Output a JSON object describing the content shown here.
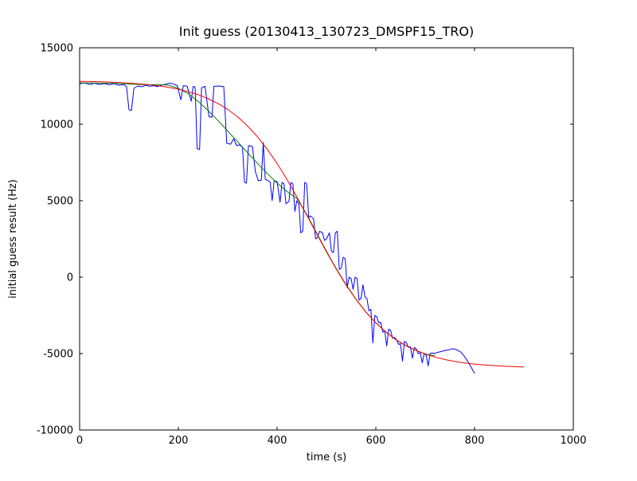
{
  "figure": {
    "background": "#ffffff",
    "frame_color": "#000000"
  },
  "chart_data": {
    "type": "line",
    "title": "Init guess (20130413_130723_DMSPF15_TRO)",
    "xlabel": "time (s)",
    "ylabel": "initial guess result (Hz)",
    "xlim": [
      0,
      1000
    ],
    "ylim": [
      -10000,
      15000
    ],
    "xticks": [
      0,
      200,
      400,
      600,
      800,
      1000
    ],
    "yticks": [
      -10000,
      -5000,
      0,
      5000,
      10000,
      15000
    ],
    "grid": false,
    "legend": "none",
    "series": [
      {
        "name": "blue-line",
        "color": "#0000ff",
        "points": [
          [
            0,
            12650
          ],
          [
            10,
            12700
          ],
          [
            20,
            12600
          ],
          [
            30,
            12680
          ],
          [
            40,
            12600
          ],
          [
            50,
            12660
          ],
          [
            60,
            12580
          ],
          [
            70,
            12650
          ],
          [
            80,
            12550
          ],
          [
            90,
            12600
          ],
          [
            95,
            12450
          ],
          [
            100,
            10950
          ],
          [
            105,
            10900
          ],
          [
            110,
            12350
          ],
          [
            118,
            12500
          ],
          [
            126,
            12450
          ],
          [
            134,
            12550
          ],
          [
            142,
            12480
          ],
          [
            150,
            12520
          ],
          [
            158,
            12460
          ],
          [
            166,
            12560
          ],
          [
            174,
            12620
          ],
          [
            182,
            12680
          ],
          [
            190,
            12640
          ],
          [
            198,
            12520
          ],
          [
            205,
            11600
          ],
          [
            210,
            12520
          ],
          [
            218,
            12480
          ],
          [
            226,
            11500
          ],
          [
            230,
            12480
          ],
          [
            234,
            12420
          ],
          [
            238,
            8400
          ],
          [
            243,
            8350
          ],
          [
            247,
            12380
          ],
          [
            254,
            12480
          ],
          [
            262,
            10500
          ],
          [
            268,
            10450
          ],
          [
            272,
            12480
          ],
          [
            282,
            12500
          ],
          [
            292,
            12460
          ],
          [
            298,
            8750
          ],
          [
            306,
            8700
          ],
          [
            312,
            9050
          ],
          [
            318,
            8600
          ],
          [
            324,
            8650
          ],
          [
            330,
            8500
          ],
          [
            334,
            6200
          ],
          [
            338,
            6150
          ],
          [
            342,
            8600
          ],
          [
            350,
            8550
          ],
          [
            356,
            6900
          ],
          [
            362,
            6300
          ],
          [
            368,
            6350
          ],
          [
            372,
            8800
          ],
          [
            376,
            6400
          ],
          [
            382,
            6300
          ],
          [
            386,
            6200
          ],
          [
            390,
            5000
          ],
          [
            394,
            6300
          ],
          [
            400,
            6250
          ],
          [
            406,
            4900
          ],
          [
            410,
            6200
          ],
          [
            414,
            6100
          ],
          [
            418,
            4800
          ],
          [
            424,
            4950
          ],
          [
            428,
            6200
          ],
          [
            432,
            6100
          ],
          [
            436,
            4300
          ],
          [
            440,
            5000
          ],
          [
            444,
            4800
          ],
          [
            448,
            2900
          ],
          [
            452,
            3000
          ],
          [
            456,
            6200
          ],
          [
            460,
            6100
          ],
          [
            464,
            3900
          ],
          [
            468,
            4000
          ],
          [
            474,
            3800
          ],
          [
            478,
            2500
          ],
          [
            482,
            2600
          ],
          [
            486,
            3000
          ],
          [
            492,
            2900
          ],
          [
            496,
            2400
          ],
          [
            500,
            2500
          ],
          [
            506,
            2900
          ],
          [
            510,
            1700
          ],
          [
            514,
            1600
          ],
          [
            518,
            2900
          ],
          [
            522,
            3000
          ],
          [
            526,
            500
          ],
          [
            530,
            600
          ],
          [
            534,
            1300
          ],
          [
            538,
            1200
          ],
          [
            542,
            -700
          ],
          [
            546,
            0
          ],
          [
            550,
            -100
          ],
          [
            554,
            -800
          ],
          [
            558,
            0
          ],
          [
            562,
            -100
          ],
          [
            566,
            -1500
          ],
          [
            570,
            -1400
          ],
          [
            574,
            -500
          ],
          [
            578,
            -1300
          ],
          [
            582,
            -1400
          ],
          [
            586,
            -2200
          ],
          [
            590,
            -2100
          ],
          [
            594,
            -4300
          ],
          [
            598,
            -2500
          ],
          [
            602,
            -2600
          ],
          [
            606,
            -3000
          ],
          [
            610,
            -2950
          ],
          [
            614,
            -3600
          ],
          [
            618,
            -3500
          ],
          [
            622,
            -4500
          ],
          [
            626,
            -3400
          ],
          [
            630,
            -3500
          ],
          [
            634,
            -4000
          ],
          [
            638,
            -3950
          ],
          [
            642,
            -4100
          ],
          [
            646,
            -4400
          ],
          [
            650,
            -4350
          ],
          [
            654,
            -5500
          ],
          [
            658,
            -4200
          ],
          [
            662,
            -4300
          ],
          [
            666,
            -4600
          ],
          [
            670,
            -4550
          ],
          [
            674,
            -5300
          ],
          [
            678,
            -4600
          ],
          [
            682,
            -4700
          ],
          [
            686,
            -5000
          ],
          [
            690,
            -4950
          ],
          [
            694,
            -5600
          ],
          [
            698,
            -5000
          ],
          [
            702,
            -5100
          ],
          [
            706,
            -5800
          ],
          [
            710,
            -5000
          ],
          [
            714,
            -4950
          ],
          [
            718,
            -5000
          ],
          [
            724,
            -4930
          ],
          [
            732,
            -4870
          ],
          [
            740,
            -4800
          ],
          [
            748,
            -4750
          ],
          [
            756,
            -4680
          ],
          [
            764,
            -4750
          ],
          [
            772,
            -4900
          ],
          [
            780,
            -5200
          ],
          [
            788,
            -5600
          ],
          [
            795,
            -6000
          ],
          [
            800,
            -6300
          ]
        ]
      },
      {
        "name": "green-line",
        "color": "#008000",
        "points": [
          [
            0,
            12700
          ],
          [
            20,
            12700
          ],
          [
            40,
            12690
          ],
          [
            60,
            12680
          ],
          [
            80,
            12660
          ],
          [
            100,
            12630
          ],
          [
            120,
            12600
          ],
          [
            140,
            12580
          ],
          [
            160,
            12600
          ],
          [
            180,
            12550
          ],
          [
            200,
            12350
          ],
          [
            220,
            12000
          ],
          [
            240,
            11500
          ],
          [
            260,
            10900
          ],
          [
            280,
            10250
          ],
          [
            300,
            9550
          ],
          [
            320,
            8850
          ],
          [
            340,
            8150
          ],
          [
            360,
            7450
          ],
          [
            380,
            6780
          ],
          [
            400,
            6150
          ],
          [
            420,
            5600
          ],
          [
            440,
            5150
          ],
          [
            460,
            4100
          ],
          [
            480,
            2900
          ],
          [
            500,
            1700
          ],
          [
            520,
            550
          ],
          [
            540,
            -500
          ],
          [
            560,
            -1450
          ],
          [
            580,
            -2280
          ],
          [
            600,
            -2990
          ],
          [
            620,
            -3580
          ],
          [
            640,
            -4080
          ],
          [
            660,
            -4470
          ],
          [
            680,
            -4780
          ],
          [
            700,
            -5020
          ],
          [
            720,
            -5150
          ]
        ]
      },
      {
        "name": "red-line",
        "color": "#ff0000",
        "points": [
          [
            0,
            12806
          ],
          [
            20,
            12794
          ],
          [
            40,
            12777
          ],
          [
            60,
            12755
          ],
          [
            80,
            12727
          ],
          [
            100,
            12691
          ],
          [
            120,
            12645
          ],
          [
            140,
            12588
          ],
          [
            160,
            12512
          ],
          [
            180,
            12414
          ],
          [
            200,
            12290
          ],
          [
            220,
            12133
          ],
          [
            240,
            11933
          ],
          [
            260,
            11673
          ],
          [
            280,
            11358
          ],
          [
            300,
            10972
          ],
          [
            320,
            10480
          ],
          [
            340,
            9893
          ],
          [
            360,
            9192
          ],
          [
            380,
            8368
          ],
          [
            400,
            7430
          ],
          [
            420,
            6386
          ],
          [
            440,
            5247
          ],
          [
            460,
            4055
          ],
          [
            480,
            2845
          ],
          [
            500,
            1653
          ],
          [
            520,
            517
          ],
          [
            540,
            -530
          ],
          [
            560,
            -1465
          ],
          [
            580,
            -2291
          ],
          [
            600,
            -2991
          ],
          [
            620,
            -3577
          ],
          [
            640,
            -4073
          ],
          [
            660,
            -4458
          ],
          [
            680,
            -4772
          ],
          [
            700,
            -5030
          ],
          [
            720,
            -5232
          ],
          [
            740,
            -5389
          ],
          [
            760,
            -5514
          ],
          [
            780,
            -5612
          ],
          [
            800,
            -5688
          ],
          [
            820,
            -5745
          ],
          [
            840,
            -5790
          ],
          [
            860,
            -5827
          ],
          [
            880,
            -5855
          ],
          [
            900,
            -5877
          ]
        ]
      }
    ]
  }
}
